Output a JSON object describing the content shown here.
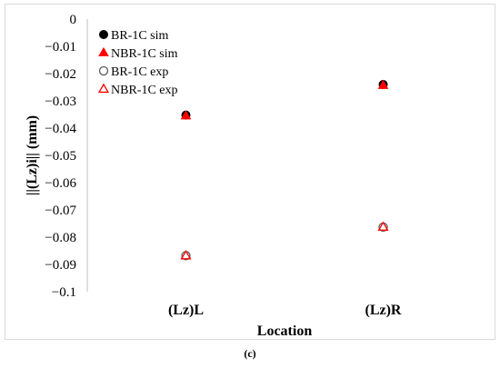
{
  "chart_data": {
    "type": "scatter",
    "categories": [
      "(Lz)L",
      "(Lz)R"
    ],
    "xlabel": "Location",
    "ylabel": "||(Lz)i||  (mm)",
    "ylim": [
      -0.1,
      0
    ],
    "yticks": [
      0,
      -0.01,
      -0.02,
      -0.03,
      -0.04,
      -0.05,
      -0.06,
      -0.07,
      -0.08,
      -0.09,
      -0.1
    ],
    "ytick_labels": [
      "0",
      "−0.01",
      "−0.02",
      "−0.03",
      "−0.04",
      "−0.05",
      "−0.06",
      "−0.07",
      "−0.08",
      "−0.09",
      "−0.1"
    ],
    "grid": false,
    "legend_position": "top-left",
    "series": [
      {
        "name": "BR-1C sim",
        "marker": "circle",
        "filled": true,
        "color": "#000000",
        "values": [
          -0.0352,
          -0.024
        ]
      },
      {
        "name": "NBR-1C sim",
        "marker": "triangle",
        "filled": true,
        "color": "#ff0000",
        "values": [
          -0.0355,
          -0.0243
        ]
      },
      {
        "name": "BR-1C exp",
        "marker": "circle",
        "filled": false,
        "color": "#595959",
        "values": [
          -0.0868,
          -0.0763
        ]
      },
      {
        "name": "NBR-1C exp",
        "marker": "triangle",
        "filled": false,
        "color": "#ff0000",
        "values": [
          -0.0868,
          -0.0763
        ]
      }
    ]
  },
  "caption": "(c)"
}
